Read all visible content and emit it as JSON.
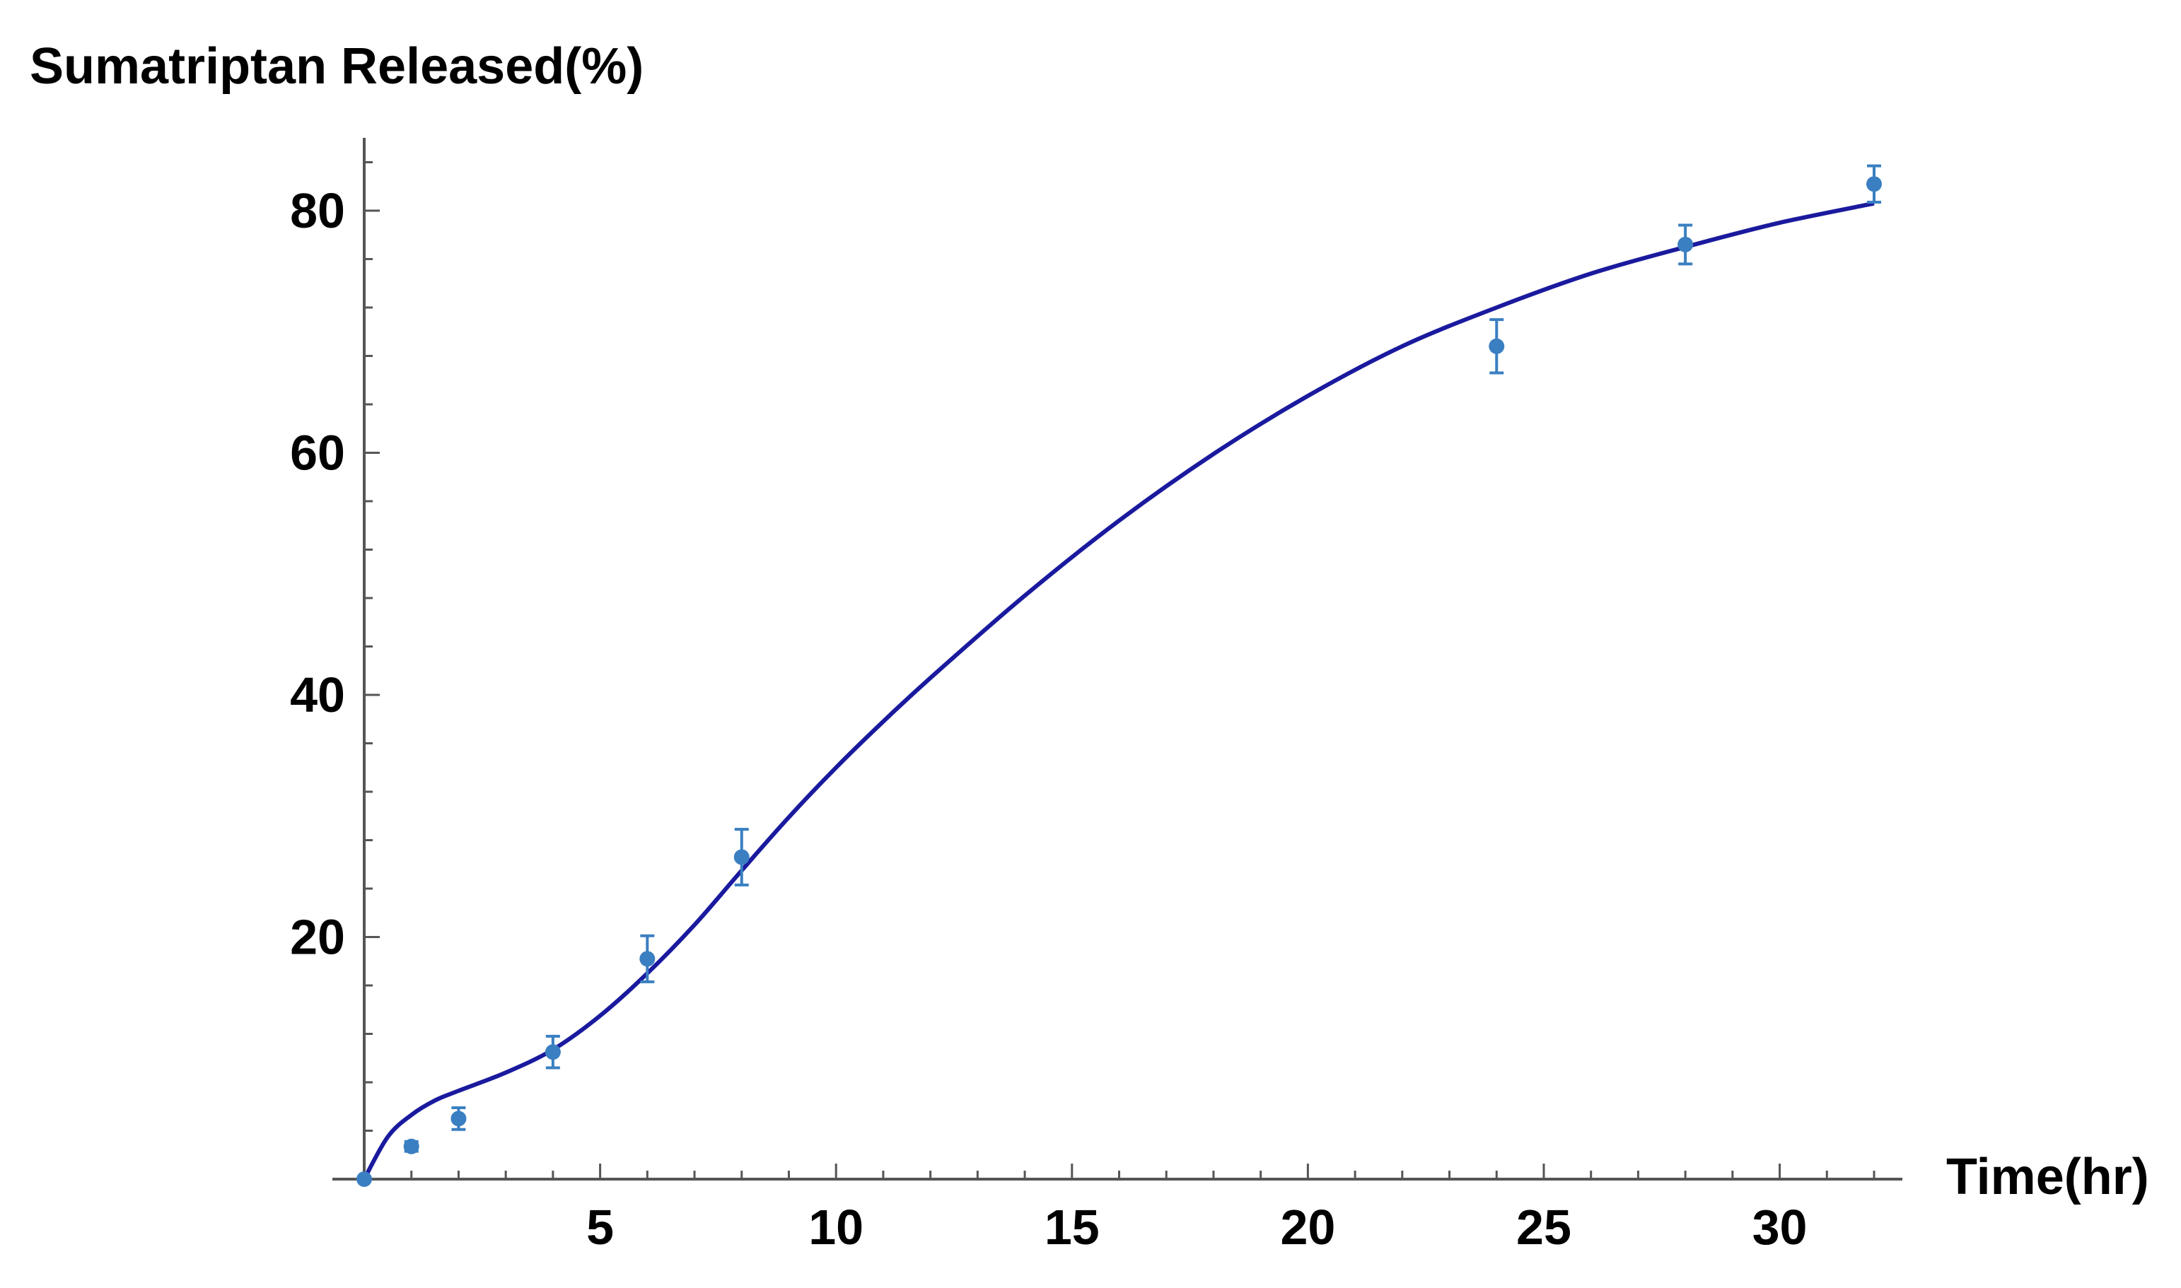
{
  "chart_data": {
    "type": "scatter",
    "ylabel": "Sumatriptan Released(%)",
    "xlabel": "Time(hr)",
    "xlim": [
      0,
      32
    ],
    "ylim": [
      0,
      86
    ],
    "x_ticks": [
      5,
      10,
      15,
      20,
      25,
      30
    ],
    "y_ticks": [
      20,
      40,
      60,
      80
    ],
    "x_minor_step": 1,
    "y_minor_step": 4,
    "grid": false,
    "series": [
      {
        "kind": "points",
        "x": [
          0,
          1,
          2,
          4,
          6,
          8,
          24,
          28,
          32
        ],
        "y": [
          0,
          2.7,
          5,
          10.5,
          18.2,
          26.6,
          68.8,
          77.2,
          82.2
        ],
        "err": [
          0,
          0.4,
          0.9,
          1.3,
          1.9,
          2.3,
          2.2,
          1.6,
          1.5
        ]
      },
      {
        "kind": "fit-line",
        "x": [
          0,
          0.5,
          1,
          1.5,
          2,
          3,
          4,
          5,
          6,
          7,
          8,
          9,
          10,
          11,
          12,
          14,
          16,
          18,
          20,
          22,
          24,
          26,
          28,
          30,
          32
        ],
        "y": [
          0,
          3.5,
          5.3,
          6.5,
          7.3,
          8.8,
          10.7,
          13.5,
          17.0,
          21.0,
          25.5,
          29.9,
          34.0,
          37.8,
          41.4,
          48.2,
          54.4,
          59.9,
          64.7,
          68.8,
          72.0,
          74.8,
          77.0,
          79.0,
          80.6
        ]
      }
    ],
    "colors": {
      "points": "#3a7fc1",
      "fit_line": "#1a1a9e",
      "axis": "#555555"
    }
  }
}
